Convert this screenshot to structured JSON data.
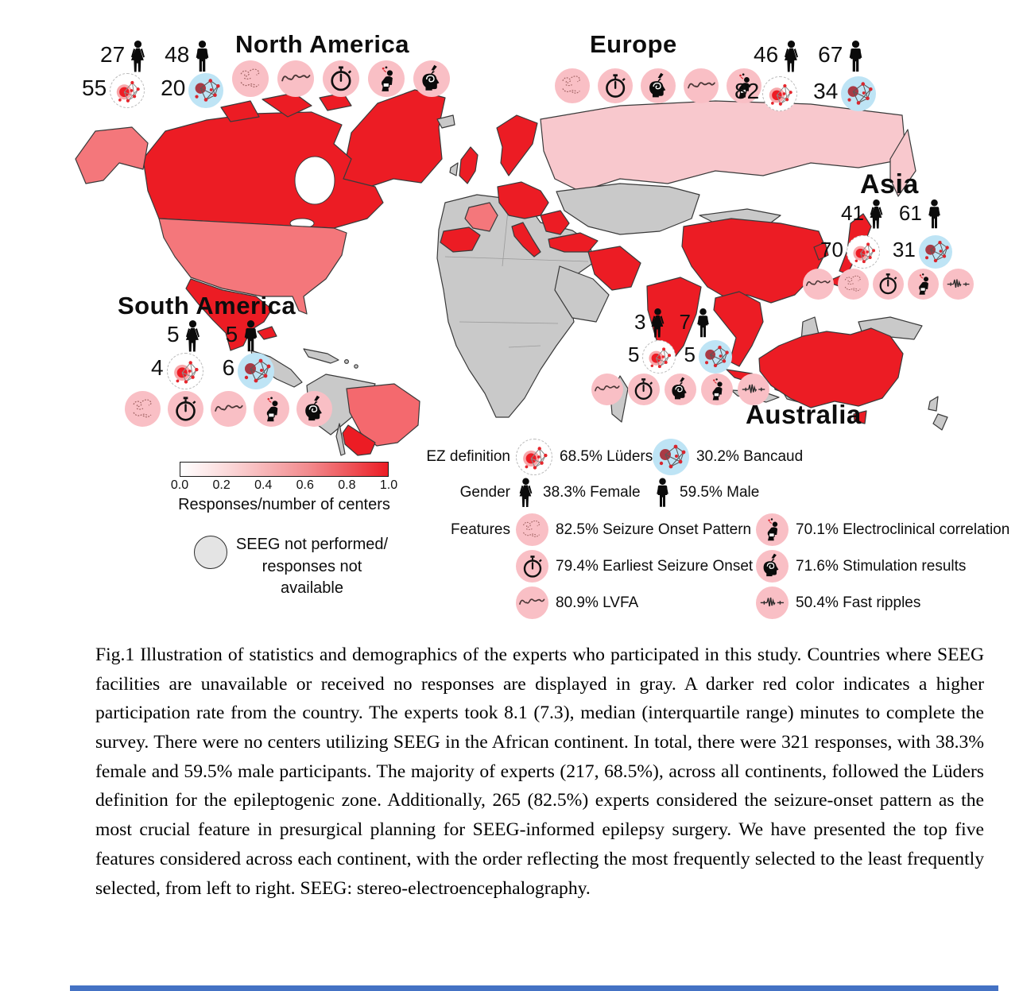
{
  "continents": [
    {
      "name": "North America",
      "female": "27",
      "male": "48",
      "luders": "55",
      "bancaud": "20",
      "features": [
        "seizure-onset-pattern",
        "lvfa",
        "earliest-seizure-onset",
        "electroclinical-correlation",
        "stimulation-results"
      ]
    },
    {
      "name": "Europe",
      "female": "46",
      "male": "67",
      "luders": "82",
      "bancaud": "34",
      "features": [
        "seizure-onset-pattern",
        "earliest-seizure-onset",
        "stimulation-results",
        "lvfa",
        "electroclinical-correlation"
      ]
    },
    {
      "name": "Asia",
      "female": "41",
      "male": "61",
      "luders": "70",
      "bancaud": "31",
      "features": [
        "lvfa",
        "seizure-onset-pattern",
        "earliest-seizure-onset",
        "electroclinical-correlation",
        "fast-ripples"
      ]
    },
    {
      "name": "South America",
      "female": "5",
      "male": "5",
      "luders": "4",
      "bancaud": "6",
      "features": [
        "seizure-onset-pattern",
        "earliest-seizure-onset",
        "lvfa",
        "electroclinical-correlation",
        "stimulation-results"
      ]
    },
    {
      "name": "Australia",
      "female": "3",
      "male": "7",
      "luders": "5",
      "bancaud": "5",
      "features": [
        "lvfa",
        "earliest-seizure-onset",
        "stimulation-results",
        "electroclinical-correlation",
        "fast-ripples"
      ]
    }
  ],
  "colorbar": {
    "ticks": [
      "0.0",
      "0.2",
      "0.4",
      "0.6",
      "0.8",
      "1.0"
    ],
    "label": "Responses/number of centers",
    "min_color": "#ffffff",
    "max_color": "#ec1c24"
  },
  "no_seeg": {
    "line1": "SEEG not performed/",
    "line2": "responses not",
    "line3": "available"
  },
  "legend": {
    "ez_label": "EZ definition",
    "luders": "68.5% Lüders",
    "bancaud": "30.2% Bancaud",
    "gender_label": "Gender",
    "female": "38.3% Female",
    "male": "59.5% Male",
    "features_label": "Features",
    "seizure_onset": "82.5% Seizure Onset Pattern",
    "electroclinical": "70.1% Electroclinical correlation",
    "earliest_onset": "79.4% Earliest Seizure Onset",
    "stimulation": "71.6% Stimulation results",
    "lvfa": "80.9% LVFA",
    "fast_ripples": "50.4% Fast ripples"
  },
  "caption": "Fig.1 Illustration of statistics and demographics of the experts who participated in this study. Countries where SEEG facilities are unavailable or received no responses are displayed in gray. A darker red color indicates a higher participation rate from the country. The experts took 8.1 (7.3), median (interquartile range) minutes to complete the survey. There were no centers utilizing SEEG in the African continent. In total, there were 321 responses, with 38.3% female and 59.5% male participants. The majority of experts (217, 68.5%), across all continents, followed the Lüders definition for the epileptogenic zone. Additionally, 265 (82.5%) experts considered the seizure-onset pattern as the most crucial feature in presurgical planning for SEEG-informed epilepsy surgery. We have presented the top five features considered across each continent, with the order reflecting the most frequently selected to the least frequently selected, from left to right. SEEG: stereo-electroencephalography.",
  "colors": {
    "map_high_participation": "#ec1c24",
    "map_mid_participation": "#f4777b",
    "map_low_participation": "#f8c8cd",
    "map_no_data_gray": "#c9c9c9",
    "feature_circle_pink": "#f9bfc5",
    "bancaud_circle_blue": "#bee4f5",
    "luders_node_red": "#ee1c25",
    "bancaud_node_dark_red": "#a93a45",
    "bottom_bar_blue": "#4472c4"
  }
}
